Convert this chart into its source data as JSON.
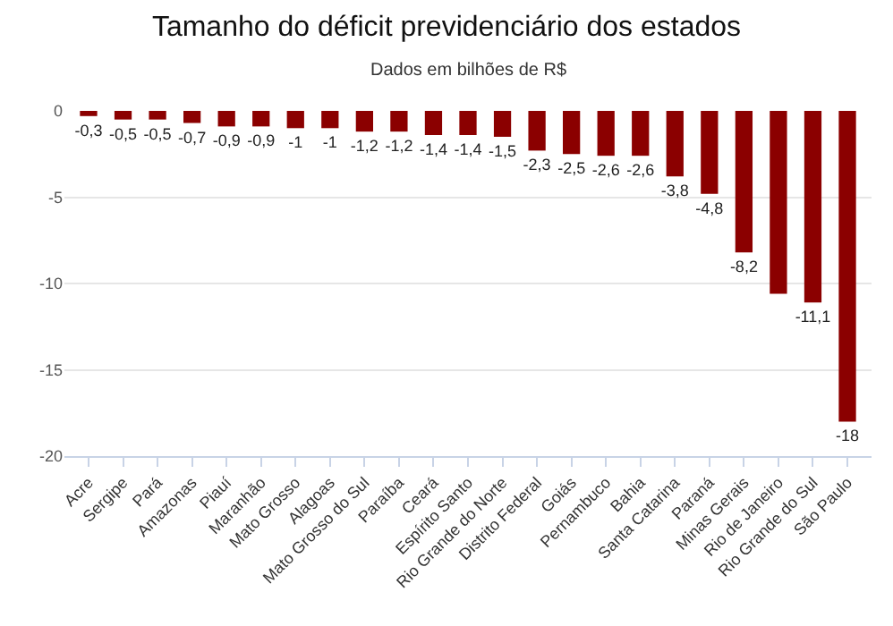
{
  "chart_data": {
    "type": "bar",
    "title": "Tamanho do déficit previdenciário dos estados",
    "subtitle": "Dados em bilhões de R$",
    "categories": [
      "Acre",
      "Sergipe",
      "Pará",
      "Amazonas",
      "Piauí",
      "Maranhão",
      "Mato Grosso",
      "Alagoas",
      "Mato Grosso do Sul",
      "Paraíba",
      "Ceará",
      "Espírito Santo",
      "Rio Grande do Norte",
      "Distrito Federal",
      "Goiás",
      "Pernambuco",
      "Bahia",
      "Santa Catarina",
      "Paraná",
      "Minas Gerais",
      "Rio de Janeiro",
      "Rio Grande do Sul",
      "São Paulo"
    ],
    "values": [
      -0.3,
      -0.5,
      -0.5,
      -0.7,
      -0.9,
      -0.9,
      -1,
      -1,
      -1.2,
      -1.2,
      -1.4,
      -1.4,
      -1.5,
      -2.3,
      -2.5,
      -2.6,
      -2.6,
      -3.8,
      -4.8,
      -8.2,
      -10.6,
      -11.1,
      -18
    ],
    "value_labels": [
      "-0,3",
      "-0,5",
      "-0,5",
      "-0,7",
      "-0,9",
      "-0,9",
      "-1",
      "-1",
      "-1,2",
      "-1,2",
      "-1,4",
      "-1,4",
      "-1,5",
      "-2,3",
      "-2,5",
      "-2,6",
      "-2,6",
      "-3,8",
      "-4,8",
      "-8,2",
      null,
      "-11,1",
      "-18"
    ],
    "color": "#8b0000",
    "ylim": [
      -20,
      0
    ],
    "yticks": [
      -20,
      -15,
      -10,
      -5,
      0
    ],
    "grid": "y"
  }
}
